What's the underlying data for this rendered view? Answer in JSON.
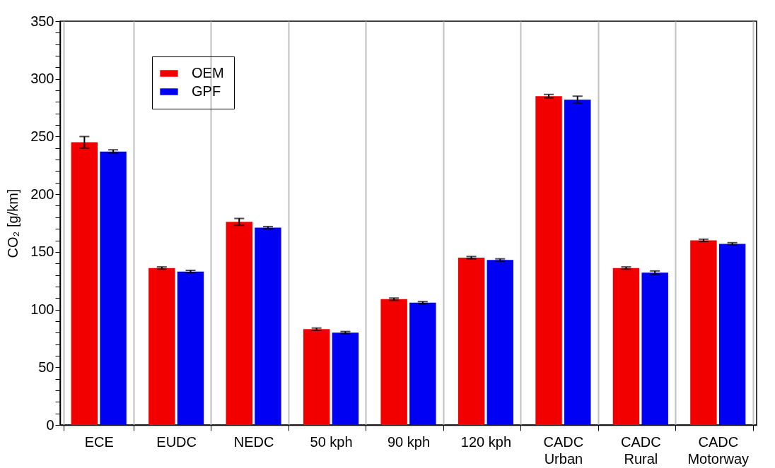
{
  "chart_data": {
    "type": "bar",
    "ylabel": "CO₂ [g/km]",
    "categories": [
      "ECE",
      "EUDC",
      "NEDC",
      "50 kph",
      "90 kph",
      "120 kph",
      "CADC\nUrban",
      "CADC\nRural",
      "CADC\nMotorway"
    ],
    "series": [
      {
        "name": "OEM",
        "color": "#f20000",
        "values": [
          245,
          136,
          176,
          83,
          109,
          145,
          285,
          136,
          160
        ],
        "errors": [
          5,
          1,
          3,
          1,
          1,
          1,
          1.5,
          1,
          1
        ]
      },
      {
        "name": "GPF",
        "color": "#0000f2",
        "values": [
          237,
          133,
          171,
          80,
          106,
          143,
          282,
          132,
          157
        ],
        "errors": [
          1.5,
          1,
          1,
          1,
          1,
          1,
          3,
          1.5,
          1
        ]
      }
    ],
    "ylim": [
      0,
      350
    ],
    "yticks": [
      0,
      {
        "value": 10,
        "label": null
      },
      {
        "value": 20,
        "label": null
      },
      {
        "value": 30,
        "label": null
      },
      {
        "value": 40,
        "label": null
      },
      50,
      {
        "value": 60,
        "label": null
      },
      {
        "value": 70,
        "label": null
      },
      {
        "value": 80,
        "label": null
      },
      {
        "value": 90,
        "label": null
      },
      100,
      {
        "value": 110,
        "label": null
      },
      {
        "value": 120,
        "label": null
      },
      {
        "value": 130,
        "label": null
      },
      {
        "value": 140,
        "label": null
      },
      150,
      {
        "value": 160,
        "label": null
      },
      {
        "value": 170,
        "label": null
      },
      {
        "value": 180,
        "label": null
      },
      {
        "value": 190,
        "label": null
      },
      200,
      {
        "value": 210,
        "label": null
      },
      {
        "value": 220,
        "label": null
      },
      {
        "value": 230,
        "label": null
      },
      {
        "value": 240,
        "label": null
      },
      250,
      {
        "value": 260,
        "label": null
      },
      {
        "value": 270,
        "label": null
      },
      {
        "value": 280,
        "label": null
      },
      {
        "value": 290,
        "label": null
      },
      300,
      {
        "value": 310,
        "label": null
      },
      {
        "value": 320,
        "label": null
      },
      {
        "value": 330,
        "label": null
      },
      {
        "value": 340,
        "label": null
      },
      350
    ],
    "grid": "x",
    "legend": "top left"
  }
}
